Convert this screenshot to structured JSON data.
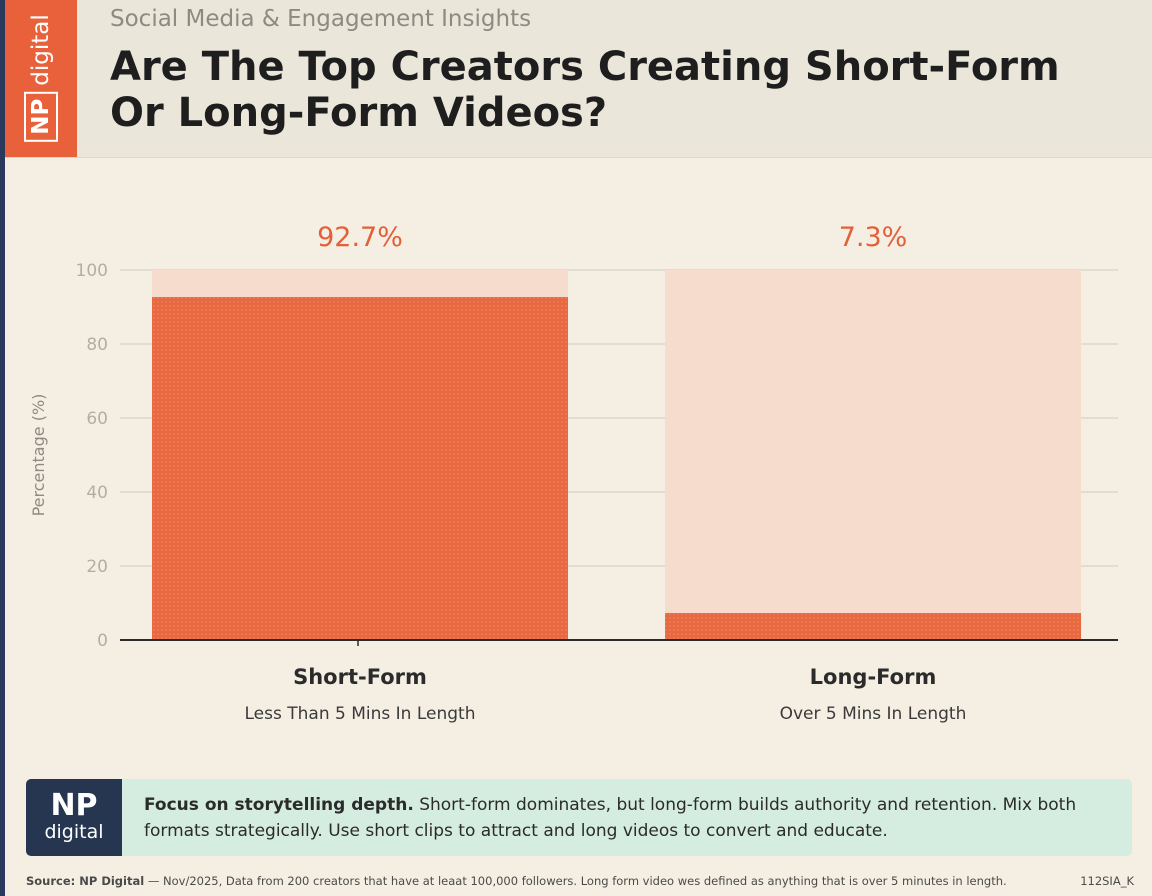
{
  "header": {
    "kicker": "Social Media & Engagement Insights",
    "title": "Are The Top Creators Creating Short-Form Or Long-Form Videos?",
    "logo_np": "NP",
    "logo_digital": "digital"
  },
  "chart_data": {
    "type": "bar",
    "ylabel": "Percentage (%)",
    "ylim": [
      0,
      100
    ],
    "yticks": [
      0,
      20,
      40,
      60,
      80,
      100
    ],
    "categories": [
      "Short-Form",
      "Long-Form"
    ],
    "subtitles": [
      "Less Than 5 Mins In Length",
      "Over 5 Mins In Length"
    ],
    "values": [
      92.7,
      7.3
    ],
    "value_labels": [
      "92.7%",
      "7.3%"
    ],
    "colors": {
      "bar": "#e8683f",
      "track": "#f6dccd",
      "label": "#e2603a"
    }
  },
  "callout": {
    "badge_np": "NP",
    "badge_digital": "digital",
    "bold": "Focus on storytelling depth.",
    "text": " Short-form dominates, but long-form builds authority and retention. Mix both formats strategically. Use short clips to attract and long videos to convert and educate."
  },
  "footer": {
    "source_label": "Source: NP Digital",
    "source_text": " — Nov/2025, Data from 200 creators that have at leaat 100,000 followers. Long form video wes defined as anything that is over 5 minutes in length.",
    "code": "112SIA_K"
  }
}
